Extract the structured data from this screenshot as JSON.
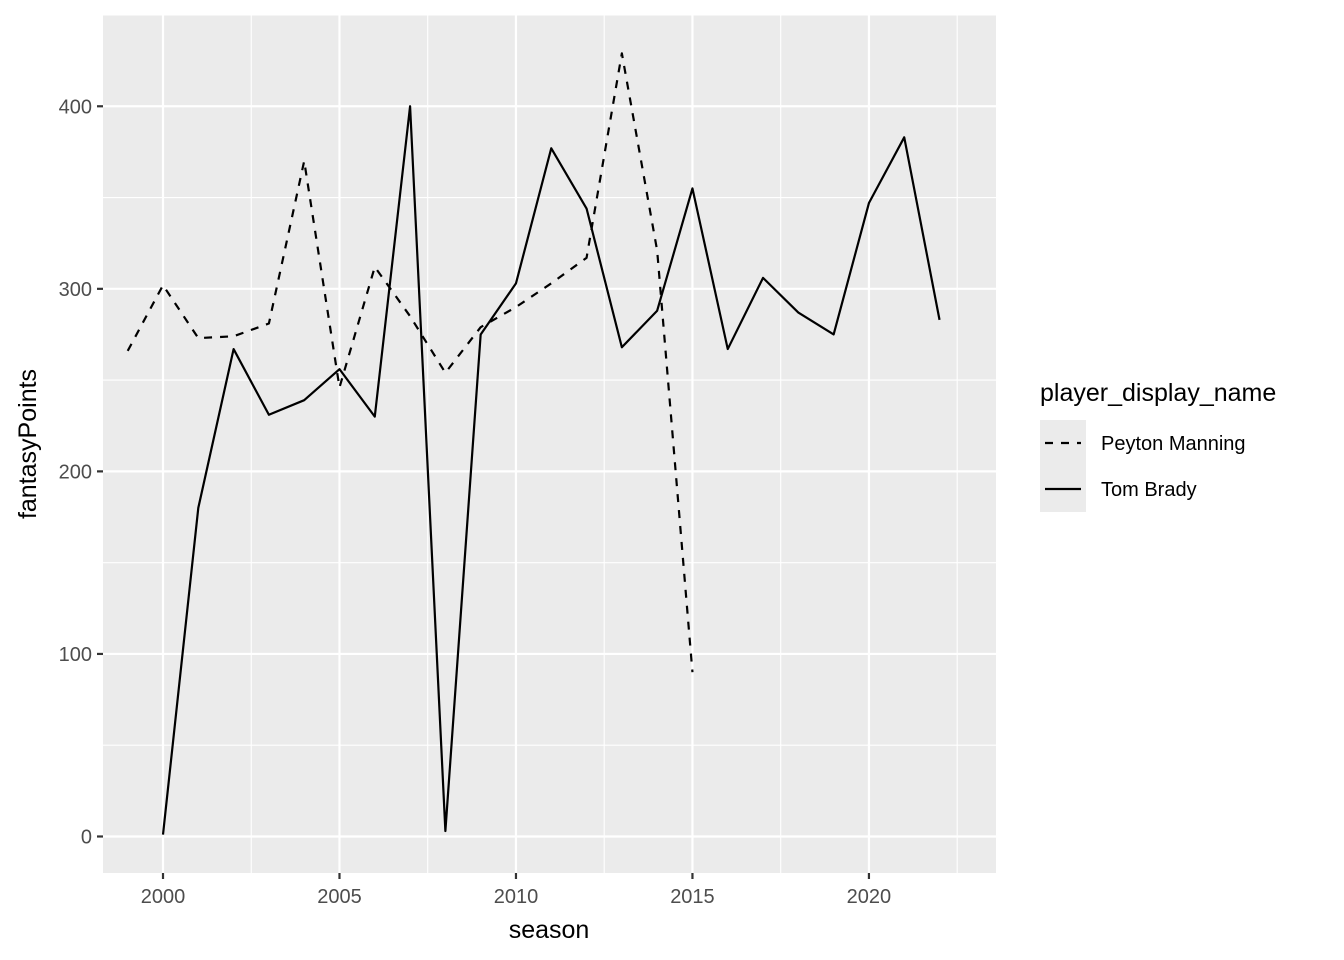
{
  "chart_data": {
    "type": "line",
    "xlabel": "season",
    "ylabel": "fantasyPoints",
    "xlim": [
      1998.3,
      2023.6
    ],
    "ylim": [
      -20,
      450
    ],
    "xticks": [
      2000,
      2005,
      2010,
      2015,
      2020
    ],
    "yticks": [
      0,
      100,
      200,
      300,
      400
    ],
    "grid": true,
    "legend": {
      "title": "player_display_name",
      "placement": "right"
    },
    "series": [
      {
        "name": "Peyton Manning",
        "linetype": "dashed",
        "color": "#000000",
        "x": [
          1999,
          2000,
          2001,
          2002,
          2003,
          2004,
          2005,
          2006,
          2007,
          2008,
          2009,
          2010,
          2011,
          2012,
          2013,
          2014,
          2015
        ],
        "y": [
          266,
          302,
          273,
          274,
          281,
          370,
          246,
          312,
          285,
          254,
          279,
          290,
          303,
          317,
          429,
          321,
          90
        ]
      },
      {
        "name": "Tom Brady",
        "linetype": "solid",
        "color": "#000000",
        "x": [
          2000,
          2001,
          2002,
          2003,
          2004,
          2005,
          2006,
          2007,
          2008,
          2009,
          2010,
          2011,
          2012,
          2013,
          2014,
          2015,
          2016,
          2017,
          2018,
          2019,
          2020,
          2021,
          2022
        ],
        "y": [
          1,
          180,
          267,
          231,
          239,
          256,
          230,
          400,
          3,
          275,
          303,
          377,
          344,
          268,
          288,
          355,
          267,
          306,
          287,
          275,
          347,
          383,
          283
        ]
      }
    ]
  }
}
